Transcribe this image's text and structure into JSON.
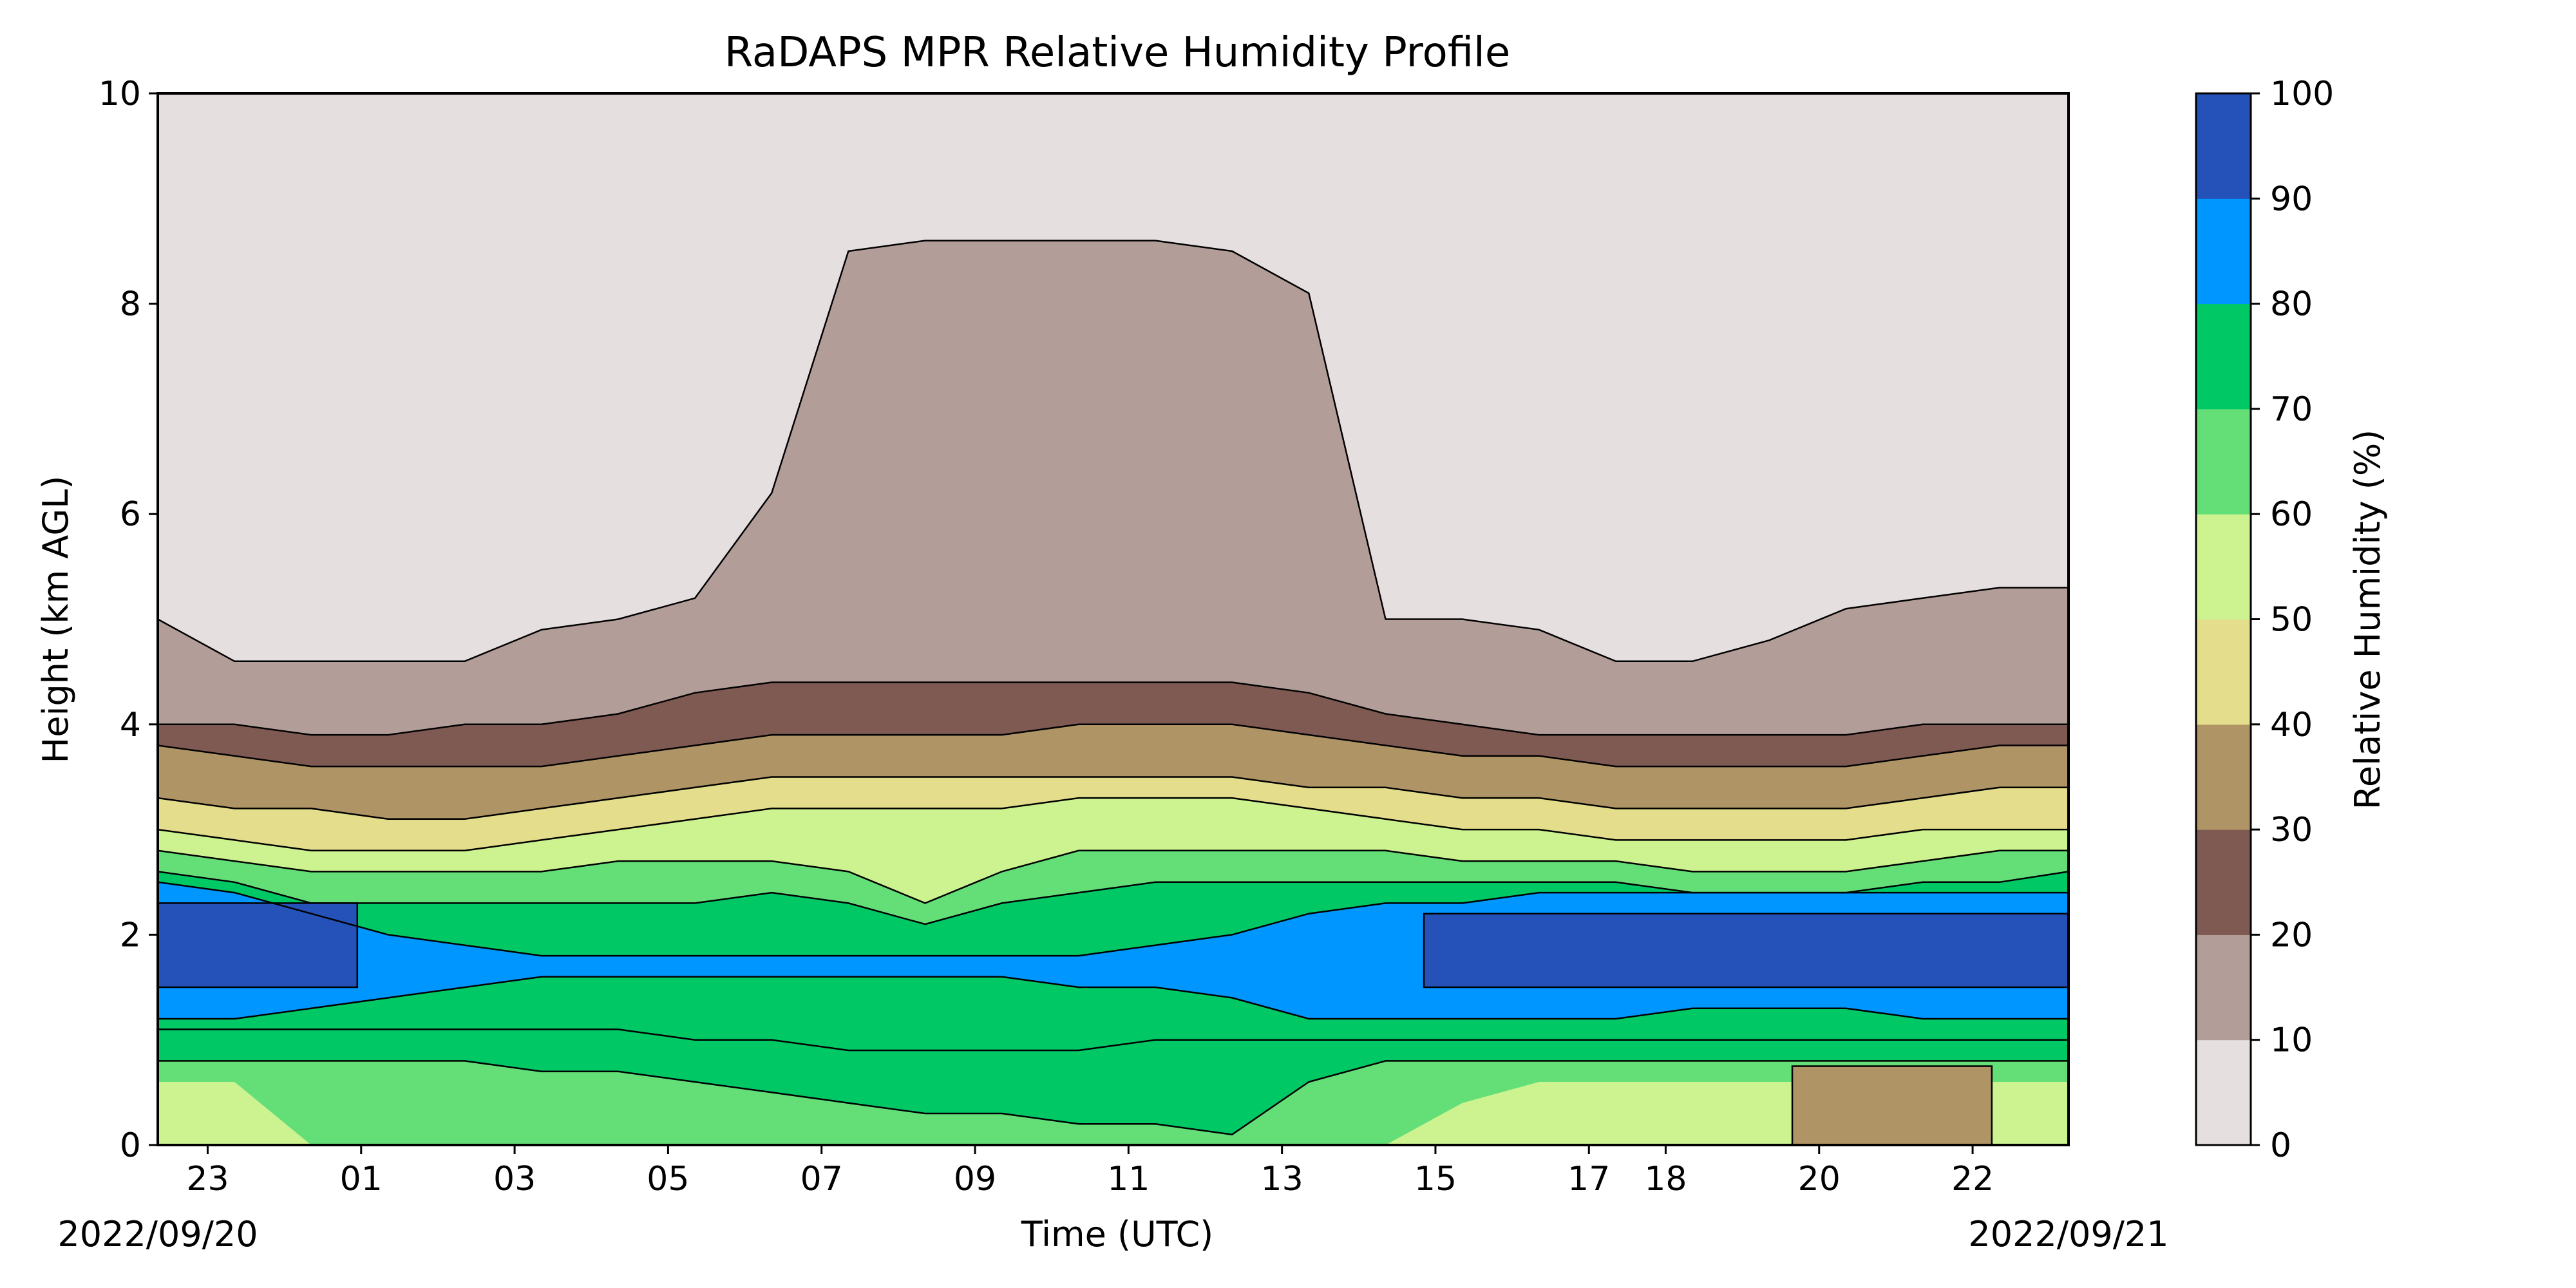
{
  "chart_data": {
    "type": "heatmap",
    "subtype": "filled-contour",
    "title": "RaDAPS MPR Relative Humidity Profile",
    "xlabel": "Time (UTC)",
    "ylabel": "Height (km AGL)",
    "ylim": [
      0,
      10
    ],
    "y_ticks": [
      "0",
      "2",
      "4",
      "6",
      "8",
      "10"
    ],
    "x_ticks": [
      "23",
      "01",
      "03",
      "05",
      "07",
      "09",
      "11",
      "13",
      "15",
      "17",
      "18",
      "20",
      "22"
    ],
    "x_tick_positions_hours": [
      0.65,
      2.65,
      4.65,
      6.65,
      8.65,
      10.65,
      12.65,
      14.65,
      16.65,
      18.65,
      19.65,
      21.65,
      23.65
    ],
    "x_range_hours": [
      0,
      24.9
    ],
    "start_date": "2022/09/20",
    "end_date": "2022/09/21",
    "colorbar": {
      "label": "Relative Humidity (%)",
      "levels": [
        0,
        10,
        20,
        30,
        40,
        50,
        60,
        70,
        80,
        90,
        100
      ],
      "tick_labels": [
        "0",
        "10",
        "20",
        "30",
        "40",
        "50",
        "60",
        "70",
        "80",
        "90",
        "100"
      ],
      "colors": [
        "#e6dfdf",
        "#b39d98",
        "#7f5a52",
        "#af9565",
        "#e3dd8c",
        "#ccf390",
        "#64df78",
        "#00c864",
        "#0096ff",
        "#2452b8"
      ]
    },
    "contour_boundaries_km": {
      "hours": [
        0,
        1,
        2,
        3,
        4,
        5,
        6,
        7,
        8,
        9,
        10,
        11,
        12,
        13,
        14,
        15,
        16,
        17,
        18,
        19,
        20,
        21,
        22,
        23,
        24,
        24.9
      ],
      "rh_10_upper": [
        5.0,
        4.6,
        4.6,
        4.6,
        4.6,
        4.9,
        5.0,
        5.2,
        6.2,
        8.5,
        8.6,
        8.6,
        8.6,
        8.6,
        8.5,
        8.1,
        5.0,
        5.0,
        4.9,
        4.6,
        4.6,
        4.8,
        5.1,
        5.2,
        5.3,
        5.3
      ],
      "rh_20_upper": [
        4.0,
        4.0,
        3.9,
        3.9,
        4.0,
        4.0,
        4.1,
        4.3,
        4.4,
        4.4,
        4.4,
        4.4,
        4.4,
        4.4,
        4.4,
        4.3,
        4.1,
        4.0,
        3.9,
        3.9,
        3.9,
        3.9,
        3.9,
        4.0,
        4.0,
        4.0
      ],
      "rh_30_upper": [
        3.8,
        3.7,
        3.6,
        3.6,
        3.6,
        3.6,
        3.7,
        3.8,
        3.9,
        3.9,
        3.9,
        3.9,
        4.0,
        4.0,
        4.0,
        3.9,
        3.8,
        3.7,
        3.7,
        3.6,
        3.6,
        3.6,
        3.6,
        3.7,
        3.8,
        3.8
      ],
      "rh_40_upper": [
        3.3,
        3.2,
        3.2,
        3.1,
        3.1,
        3.2,
        3.3,
        3.4,
        3.5,
        3.5,
        3.5,
        3.5,
        3.5,
        3.5,
        3.5,
        3.4,
        3.4,
        3.3,
        3.3,
        3.2,
        3.2,
        3.2,
        3.2,
        3.3,
        3.4,
        3.4
      ],
      "rh_50_upper": [
        3.0,
        2.9,
        2.8,
        2.8,
        2.8,
        2.9,
        3.0,
        3.1,
        3.2,
        3.2,
        3.2,
        3.2,
        3.3,
        3.3,
        3.3,
        3.2,
        3.1,
        3.0,
        3.0,
        2.9,
        2.9,
        2.9,
        2.9,
        3.0,
        3.0,
        3.0
      ],
      "rh_60_upper": [
        2.8,
        2.7,
        2.6,
        2.6,
        2.6,
        2.6,
        2.7,
        2.7,
        2.7,
        2.6,
        2.3,
        2.6,
        2.8,
        2.8,
        2.8,
        2.8,
        2.8,
        2.7,
        2.7,
        2.7,
        2.6,
        2.6,
        2.6,
        2.7,
        2.8,
        2.8
      ],
      "rh_70_upper": [
        2.6,
        2.5,
        2.3,
        2.3,
        2.3,
        2.3,
        2.3,
        2.3,
        2.4,
        2.3,
        2.1,
        2.3,
        2.4,
        2.5,
        2.5,
        2.5,
        2.5,
        2.5,
        2.5,
        2.5,
        2.4,
        2.4,
        2.4,
        2.5,
        2.5,
        2.6
      ],
      "rh_80_upper": [
        2.5,
        2.4,
        2.2,
        2.0,
        1.9,
        1.8,
        1.8,
        1.8,
        1.8,
        1.8,
        1.8,
        1.8,
        1.8,
        1.9,
        2.0,
        2.2,
        2.3,
        2.3,
        2.4,
        2.4,
        2.4,
        2.4,
        2.4,
        2.4,
        2.4,
        2.4
      ],
      "rh_80_lower": [
        1.2,
        1.2,
        1.3,
        1.4,
        1.5,
        1.6,
        1.6,
        1.6,
        1.6,
        1.6,
        1.6,
        1.6,
        1.5,
        1.5,
        1.4,
        1.2,
        1.2,
        1.2,
        1.2,
        1.2,
        1.3,
        1.3,
        1.3,
        1.2,
        1.2,
        1.2
      ],
      "rh_70_lower": [
        1.1,
        1.1,
        1.1,
        1.1,
        1.1,
        1.1,
        1.1,
        1.0,
        1.0,
        0.9,
        0.9,
        0.9,
        0.9,
        1.0,
        1.0,
        1.0,
        1.0,
        1.0,
        1.0,
        1.0,
        1.0,
        1.0,
        1.0,
        1.0,
        1.0,
        1.0
      ],
      "rh_60_lower": [
        0.8,
        0.8,
        0.8,
        0.8,
        0.8,
        0.7,
        0.7,
        0.6,
        0.5,
        0.4,
        0.3,
        0.3,
        0.2,
        0.2,
        0.1,
        0.6,
        0.8,
        0.8,
        0.8,
        0.8,
        0.8,
        0.8,
        0.8,
        0.8,
        0.8,
        0.8
      ],
      "rh_50_lower": [
        0.6,
        0.6,
        0.0,
        0.0,
        0.0,
        0.0,
        0.0,
        0.0,
        0.0,
        0.0,
        0.0,
        0.0,
        0.0,
        0.0,
        0.0,
        0.0,
        0.0,
        0.4,
        0.6,
        0.6,
        0.6,
        0.6,
        0.6,
        0.6,
        0.6,
        0.6
      ],
      "rh_40_lower": [
        0.0,
        0.0,
        0.0,
        0.0,
        0.0,
        0.0,
        0.0,
        0.0,
        0.0,
        0.0,
        0.0,
        0.0,
        0.0,
        0.0,
        0.0,
        0.0,
        0.0,
        0.0,
        0.0,
        0.0,
        0.0,
        0.0,
        0.0,
        0.0,
        0.0,
        0.0
      ],
      "rh_90_core": {
        "hours": [
          0.0,
          1.0,
          2.0,
          2.6,
          2.6,
          2.0,
          1.0,
          0.0
        ],
        "top": [
          2.3,
          2.3,
          2.2,
          2.0
        ],
        "regions": [
          {
            "h_start": 0.0,
            "h_end": 2.6,
            "lower": 1.5,
            "upper": 2.3
          },
          {
            "h_start": 16.5,
            "h_end": 24.9,
            "lower": 1.5,
            "upper": 2.2
          }
        ]
      },
      "rh_30_bulge": {
        "h_start": 21.3,
        "h_end": 23.9,
        "upper": 0.75
      }
    }
  }
}
